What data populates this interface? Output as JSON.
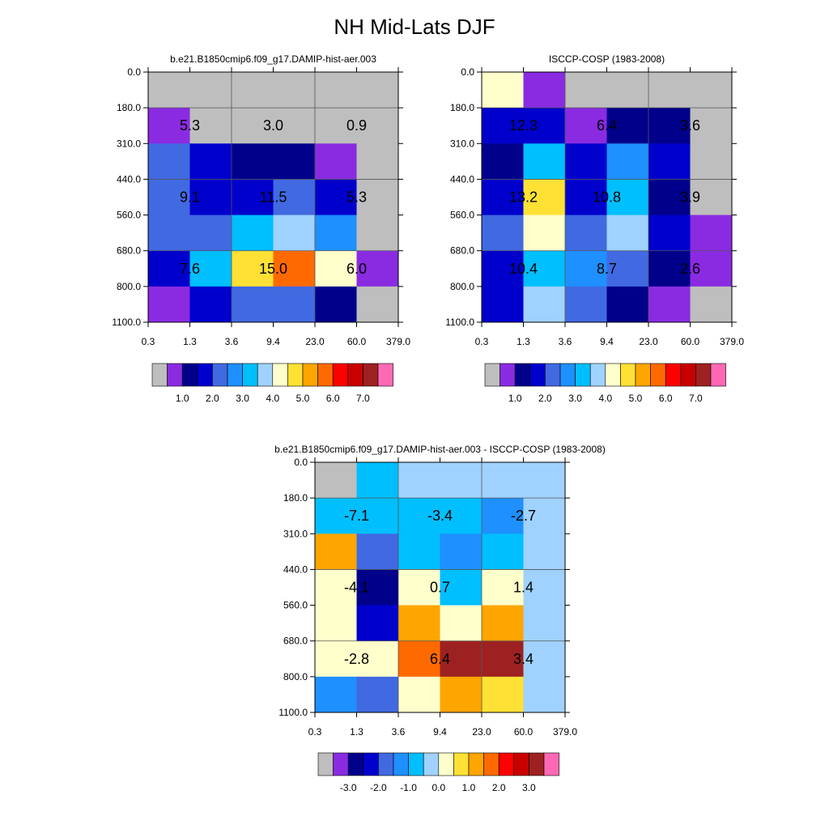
{
  "title": "NH Mid-Lats DJF",
  "palettes": {
    "abs": [
      "#bebebe",
      "#8a2be2",
      "#00008b",
      "#0000cd",
      "#4169e1",
      "#1e90ff",
      "#00bfff",
      "#a0d2ff",
      "#ffffcc",
      "#ffe135",
      "#ffa500",
      "#ff6a00",
      "#ff0000",
      "#c80000",
      "#9e2121",
      "#ff69b4"
    ],
    "diff": [
      "#bebebe",
      "#8a2be2",
      "#00008b",
      "#0000cd",
      "#4169e1",
      "#1e90ff",
      "#00bfff",
      "#a0d2ff",
      "#ffffcc",
      "#ffe135",
      "#ffa500",
      "#ff6a00",
      "#ff0000",
      "#c80000",
      "#9e2121",
      "#ff69b4"
    ]
  },
  "chart_data": [
    {
      "type": "heatmap",
      "title": "b.e21.B1850cmip6.f09_g17.DAMIP-hist-aer.003",
      "x_ticks": [
        "0.3",
        "1.3",
        "3.6",
        "9.4",
        "23.0",
        "60.0",
        "379.0"
      ],
      "y_ticks": [
        "0.0",
        "180.0",
        "310.0",
        "440.0",
        "560.0",
        "680.0",
        "800.0",
        "1100.0"
      ],
      "colorbar": {
        "palette": "abs",
        "labels": [
          "1.0",
          "2.0",
          "3.0",
          "4.0",
          "5.0",
          "6.0",
          "7.0"
        ]
      },
      "cells": [
        [
          0,
          0,
          0,
          0,
          0,
          0
        ],
        [
          1,
          0,
          0,
          0,
          0,
          0
        ],
        [
          4,
          3,
          2,
          2,
          1,
          0
        ],
        [
          4,
          3,
          3,
          4,
          3,
          0
        ],
        [
          4,
          4,
          6,
          7,
          5,
          0
        ],
        [
          3,
          6,
          9,
          11,
          8,
          1
        ],
        [
          1,
          3,
          4,
          4,
          2,
          0
        ]
      ],
      "annotations": [
        {
          "text": "5.3",
          "row": 1,
          "col": 1
        },
        {
          "text": "3.0",
          "row": 1,
          "col": 3
        },
        {
          "text": "0.9",
          "row": 1,
          "col": 5
        },
        {
          "text": "9.1",
          "row": 3,
          "col": 1
        },
        {
          "text": "11.5",
          "row": 3,
          "col": 3
        },
        {
          "text": "5.3",
          "row": 3,
          "col": 5
        },
        {
          "text": "7.6",
          "row": 5,
          "col": 1
        },
        {
          "text": "15.0",
          "row": 5,
          "col": 3
        },
        {
          "text": "6.0",
          "row": 5,
          "col": 5
        }
      ]
    },
    {
      "type": "heatmap",
      "title": "ISCCP-COSP (1983-2008)",
      "x_ticks": [
        "0.3",
        "1.3",
        "3.6",
        "9.4",
        "23.0",
        "60.0",
        "379.0"
      ],
      "y_ticks": [
        "0.0",
        "180.0",
        "310.0",
        "440.0",
        "560.0",
        "680.0",
        "800.0",
        "1100.0"
      ],
      "colorbar": {
        "palette": "abs",
        "labels": [
          "1.0",
          "2.0",
          "3.0",
          "4.0",
          "5.0",
          "6.0",
          "7.0"
        ]
      },
      "cells": [
        [
          8,
          1,
          0,
          0,
          0,
          0
        ],
        [
          3,
          3,
          1,
          2,
          2,
          0
        ],
        [
          2,
          6,
          3,
          5,
          3,
          0
        ],
        [
          3,
          9,
          3,
          6,
          2,
          0
        ],
        [
          4,
          8,
          4,
          7,
          3,
          1
        ],
        [
          3,
          6,
          5,
          4,
          2,
          1
        ],
        [
          3,
          7,
          4,
          2,
          1,
          0
        ]
      ],
      "annotations": [
        {
          "text": "12.3",
          "row": 1,
          "col": 1
        },
        {
          "text": "6.4",
          "row": 1,
          "col": 3
        },
        {
          "text": "3.6",
          "row": 1,
          "col": 5
        },
        {
          "text": "13.2",
          "row": 3,
          "col": 1
        },
        {
          "text": "10.8",
          "row": 3,
          "col": 3
        },
        {
          "text": "3.9",
          "row": 3,
          "col": 5
        },
        {
          "text": "10.4",
          "row": 5,
          "col": 1
        },
        {
          "text": "8.7",
          "row": 5,
          "col": 3
        },
        {
          "text": "2.6",
          "row": 5,
          "col": 5
        }
      ]
    },
    {
      "type": "heatmap",
      "title": "b.e21.B1850cmip6.f09_g17.DAMIP-hist-aer.003 - ISCCP-COSP (1983-2008)",
      "x_ticks": [
        "0.3",
        "1.3",
        "3.6",
        "9.4",
        "23.0",
        "60.0",
        "379.0"
      ],
      "y_ticks": [
        "0.0",
        "180.0",
        "310.0",
        "440.0",
        "560.0",
        "680.0",
        "800.0",
        "1100.0"
      ],
      "colorbar": {
        "palette": "diff",
        "labels": [
          "-3.0",
          "-2.0",
          "-1.0",
          "0.0",
          "1.0",
          "2.0",
          "3.0"
        ]
      },
      "cells": [
        [
          0,
          6,
          7,
          7,
          7,
          7
        ],
        [
          6,
          6,
          6,
          6,
          5,
          7
        ],
        [
          10,
          4,
          6,
          5,
          6,
          7
        ],
        [
          8,
          2,
          8,
          6,
          8,
          7
        ],
        [
          8,
          3,
          10,
          8,
          10,
          7
        ],
        [
          8,
          8,
          11,
          14,
          14,
          7
        ],
        [
          5,
          4,
          8,
          10,
          9,
          7
        ]
      ],
      "annotations": [
        {
          "text": "-7.1",
          "row": 1,
          "col": 1
        },
        {
          "text": "-3.4",
          "row": 1,
          "col": 3
        },
        {
          "text": "-2.7",
          "row": 1,
          "col": 5
        },
        {
          "text": "-4.1",
          "row": 3,
          "col": 1
        },
        {
          "text": "0.7",
          "row": 3,
          "col": 3
        },
        {
          "text": "1.4",
          "row": 3,
          "col": 5
        },
        {
          "text": "-2.8",
          "row": 5,
          "col": 1
        },
        {
          "text": "6.4",
          "row": 5,
          "col": 3
        },
        {
          "text": "3.4",
          "row": 5,
          "col": 5
        }
      ]
    }
  ]
}
